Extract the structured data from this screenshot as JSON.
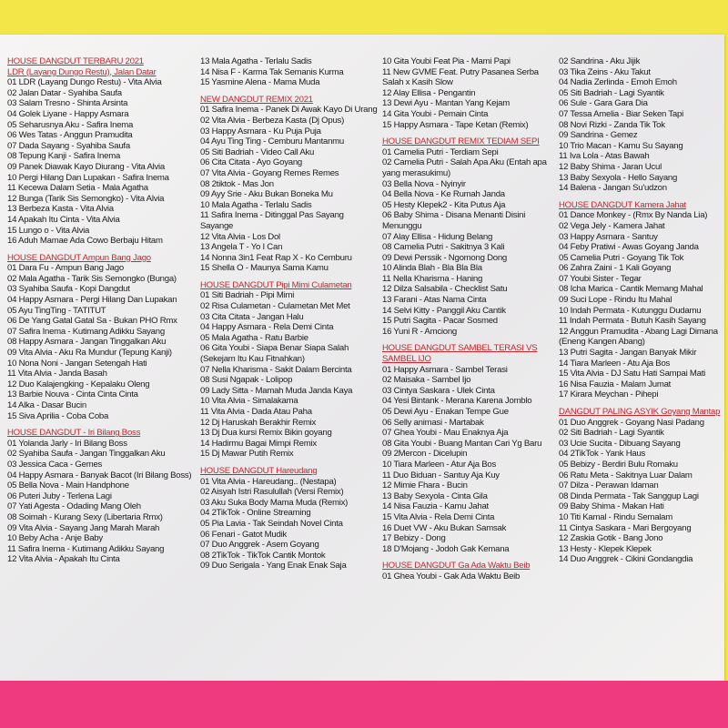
{
  "columns": [
    [
      {
        "heading": "HOUSE DANGDUT TERBARU 2021",
        "subheading": "LDR (Layang Dungo Restu), Jalan Datar",
        "tracks": [
          "01 LDR (Layang Dungo Restu) - Vita Alvia",
          "02 Jalan Datar - Syahiba Saufa",
          "03 Salam Tresno - Shinta Arsinta",
          "04 Golek Liyane - Happy Asmara",
          "05 Seharusnya Aku - Safira Inema",
          "06 Wes Tatas - Anggun Pramudita",
          "07 Dada Sayang - Syahiba Saufa",
          "08 Tepung Kanji - Safira Inema",
          "09 Panek Diawak Kayo Diurang - Vita Alvia",
          "10 Pergi Hilang Dan Lupakan - Safira Inema",
          "11 Kecewa Dalam Setia - Mala Agatha",
          "12 Bunga (Tarik Sis Semongko) - Vita Alvia",
          "13 Berbeza Kasta - Vita Alvia",
          "14 Apakah Itu Cinta - Vita Alvia",
          "15 Lungo o - Vita Alvia",
          "16 Aduh Mamae Ada Cowo Berbaju Hitam"
        ]
      },
      {
        "heading": "HOUSE DANGDUT Ampun Bang Jago",
        "tracks": [
          "01 Dara Fu - Ampun Bang Jago",
          "02 Mala Agatha - Tarik Sis Semongko (Bunga)",
          "03 Syahiba Saufa - Kopi Dangdut",
          "04 Happy Asmara - Pergi Hilang Dan Lupakan",
          "05 Ayu TingTing - TATITUT",
          "06 De Yang Gatal Gatal Sa - Bukan PHO Rmx",
          "07 Safira Inema - Kutimang Adikku Sayang",
          "08 Happy Asmara - Jangan Tinggalkan Aku",
          "09 Vita Alvia - Aku Ra Mundur (Tepung Kanji)",
          "10 Nona Noni - Jangan Setengah Hati",
          "11 Vita Alvia - Janda Basah",
          "12 Duo Kalajengking - Kepalaku Oleng",
          "13 Barbie Nouva - Cinta Cinta Cinta",
          "14 Alka - Dasar Bucin",
          "15 Siva Aprilia - Coba Coba"
        ]
      },
      {
        "heading": "HOUSE DANGDUT - Iri Bilang Boss",
        "tracks": [
          "01 Yolanda Jarly - Iri Bilang Boss",
          "02 Syahiba Saufa - Jangan Tinggalkan Aku",
          "03 Jessica Caca - Gemes",
          "04 Happy Asmara - Banyak Bacot (Iri Bilang Boss)",
          "05 Bella Nova - Main Handphone",
          "06 Puteri Juby - Terlena Lagi",
          "07 Yati Agesta - Odading Mang Oleh",
          "08 Soimah - Kurang Sexy (Libertaria Rmx)",
          "09 Vita Alvia - Sayang Jang Marah Marah",
          "10 Beby Acha - Anje Baby",
          "11 Safira Inema - Kutimang Adikku Sayang",
          "12 Vita Alvia - Apakah Itu Cinta"
        ]
      }
    ],
    [
      {
        "tracks": [
          "13 Mala Agatha - Terlalu Sadis",
          "14 Nisa F - Karma Tak Semanis Kurma",
          "15 Yasmine Alena - Mama Muda"
        ]
      },
      {
        "heading": "NEW DANGDUT REMIX 2021",
        "tracks": [
          "01 Safira Inema - Panek Di Awak Kayo Di Urang",
          "02 Vita Alvia - Berbeza Kasta (Dj Opus)",
          "03 Happy Asmara - Ku Puja Puja",
          "04 Ayu Ting Ting - Cemburu Mantanmu",
          "05 Siti Badriah - Video Call Aku",
          "06 Cita Citata - Ayo Goyang",
          "07 Vita Alvia - Goyang Remes Remes",
          "08 2tiktok - Mas Jon",
          "09 Ayy Srie - Aku Bukan Boneka Mu",
          "10 Mala Agatha - Terlalu Sadis",
          "11 Safira Inema - Ditinggal Pas Sayang Sayange",
          "12 Vita Alvia - Los Dol",
          "13 Angela T - Yo I Can",
          "14 Nonna 3in1 Feat Rap X - Ko Cemburu",
          "15 Shella O - Maunya Sama Kamu"
        ]
      },
      {
        "heading": "HOUSE DANGDUT Pipi Mimi Culametan",
        "tracks": [
          "01 Siti Badriah - Pipi Mimi",
          "02 Risa Culametan - Culametan Met Met",
          "03 Cita Citata - Jangan Halu",
          "04 Happy Asmara - Rela Demi Cinta",
          "05 Mala Agatha - Ratu Barbie",
          "06 Gita Youbi - Siapa Benar Siapa Salah (Sekejam Itu Kau Fitnahkan)",
          "07 Nella Kharisma - Sakit Dalam Bercinta",
          "08 Susi Ngapak - Lolipop",
          "09 Lady Sitta - Mamah Muda Janda Kaya",
          "10 Vita Alvia - Simalakama",
          "11 Vita Alvia - Dada Atau Paha",
          "12 Dj Haruskah Berakhir Remix",
          "13 Dj Dua kursi Remix Bikin goyang",
          "14 Hadirmu Bagai Mimpi Remix",
          "15 Dj Mawar Putih Remix"
        ]
      },
      {
        "heading": "HOUSE DANGDUT Hareudang",
        "tracks": [
          "01 Vita Alvia - Hareudang.. (Nestapa)",
          "02 Aisyah Istri Rasulullah (Versi Remix)",
          "03 Aku Suka Body Mama Muda (Remix)",
          "04 2TikTok - Online Streaming",
          "05 Pia Lavia - Tak Seindah Novel Cinta",
          "06 Fenari - Gatot Mudik",
          "07 Duo Anggrek - Asem Goyang",
          "08 2TikTok - TikTok Cantik Montok",
          "09 Duo Serigala - Yang Enak Enak Saja"
        ]
      }
    ],
    [
      {
        "tracks": [
          "10 Gita Youbi Feat Pia - Mami Papi",
          "11 New GVME Feat. Putry Pasanea Serba Salah x Kasih Slow",
          "12 Alay Ellisa - Pengantin",
          "13 Dewi Ayu - Mantan Yang Kejam",
          "14 Gita Youbi - Pemain Cinta",
          "15 Happy Asmara - Tape Ketan (Remix)"
        ]
      },
      {
        "heading": "HOUSE DANGDUT REMIX TEDIAM SEPI",
        "tracks": [
          "01 Camelia Putri - Terdiam Sepi",
          "02 Camelia Putri - Salah Apa Aku (Entah apa yang merasukimu)",
          "03 Bella Nova - Nyinyir",
          "04 Bella Nova - Ke Rumah Janda",
          "05 Hesty Klepek2 - Kita Putus Aja",
          "06 Baby Shima - Disana Menanti Disini Menunggu",
          "07 Alay Ellisa - Hidung Belang",
          "08 Camelia Putri - Sakitnya 3 Kali",
          "09 Dewi Perssik - Ngomong Dong",
          "10 Alinda Blah - Bla Bla Bla",
          "11 Nella Kharisma - Haning",
          "12 Dilza Salsabila - Checklist Satu",
          "13 Farani - Atas Nama Cinta",
          "14 Selvi Kitty - Panggil Aku Cantik",
          "15 Putri Sagita - Pacar Sosmed",
          "16 Yuni R - Amciong"
        ]
      },
      {
        "heading": "HOUSE DANGDUT SAMBEL TERASI VS SAMBEL IJO",
        "tracks": [
          "01 Happy Asmara - Sambel Terasi",
          "02 Maisaka - Sambel Ijo",
          "03 Cintya Saskara - Ulek Cinta",
          "04 Yesi Bintank - Merana Karena Jomblo",
          "05 Dewi Ayu - Enakan Tempe Gue",
          "06 Selly animasi - Martabak",
          "07 Ghea Youbi - Mau Enaknya Aja",
          "08 Gita Youbi - Buang Mantan Cari Yg Baru",
          "09 2Mercon - Dicelupin",
          "10 Tiara Marleen - Atur Aja Bos",
          "11 Duo Biduan - Santuy Aja Kuy",
          "12 Mimie Fhara - Bucin",
          "13 Baby Sexyola - Cinta Gila",
          "14 Nisa Fauzia - Kamu Jahat",
          "15 Vita Alvia - Rela Demi Cinta",
          "16 Duet VW - Aku Bukan Samsak",
          "17 Bebizy - Dong",
          "18 D'Mojang - Jodoh Gak Kemana"
        ]
      },
      {
        "heading": "HOUSE DANGDUT Ga Ada Waktu Beib",
        "tracks": [
          "01 Ghea Youbi - Gak Ada Waktu Beib"
        ]
      }
    ],
    [
      {
        "tracks": [
          "02 Sandrina - Aku Jijik",
          "03 Tika Zeins - Aku Takut",
          "04 Nadia Zerlinda - Emoh Emoh",
          "05 Siti Badriah - Lagi Syantik",
          "06 Sule - Gara Gara Dia",
          "07 Tessa Amelia - Biar Seken Tapi",
          "08 Novi Rizki - Zanda Tik Tok",
          "09 Sandrina - Gemez",
          "10 Trio Macan - Kamu Su Sayang",
          "11 Iva Lola - Atas Bawah",
          "12 Baby Shima - Jaran Ucul",
          "13 Baby Sexyola - Hello Sayang",
          "14 Balena - Jangan Su'udzon"
        ]
      },
      {
        "heading": "HOUSE DANGDUT Kamera Jahat",
        "tracks": [
          "01 Dance Monkey - (Rmx By Nanda Lia)",
          "02 Vega Jely - Kamera Jahat",
          "03 Happy Asmara - Santuy",
          "04 Feby Pratiwi - Awas Goyang Janda",
          "05 Camelia Putri - Goyang Tik Tok",
          "06 Zahra Zaini - 1 Kali Goyang",
          "07 Youbi Sister - Tegar",
          "08 Icha Marica - Cantik Memang Mahal",
          "09 Suci Lope - Rindu Itu Mahal",
          "10 Indah Permata - Kutunggu Dudamu",
          "11 Indah Permata - Butuh Kasih Sayang",
          "12 Anggun Pramudita - Abang Lagi Dimana (Eneng Kangen Abang)",
          "13 Putri Sagita - Jangan Banyak Mikir",
          "14 Tiara Marleen - Atu Aja Bos",
          "15 Vita Alvia - DJ Satu Hati Sampai Mati",
          "16 Nisa Fauzia - Malam Jumat",
          "17 Kirara Meychan - Pihepi"
        ]
      },
      {
        "heading": "DANGDUT PALING ASYIK Goyang Mantap",
        "tracks": [
          "01 Duo Anggrek - Goyang Nasi Padang",
          "02 Siti Badriah - Lagi Syantik",
          "03 Ucie Sucita - Dibuang Sayang",
          "04 2TikTok - Yank Haus",
          "05 Bebizy - Berdiri Bulu Romaku",
          "06 Ratu Meta - Sakitnya Luar Dalam",
          "07 Dilza - Perawan Idaman",
          "08 Dinda Permata - Tak Sanggup Lagi",
          "09 Baby Shima - Makan Hati",
          "10 Titi Kamal - Rindu Semalam",
          "11 Cintya Saskara - Mari Bergoyang",
          "12 Zaskia Gotik - Bang Jono",
          "13 Hesty - Klepek Klepek",
          "14 Duo Anggrek - Cikini Gondangdia"
        ]
      }
    ]
  ]
}
